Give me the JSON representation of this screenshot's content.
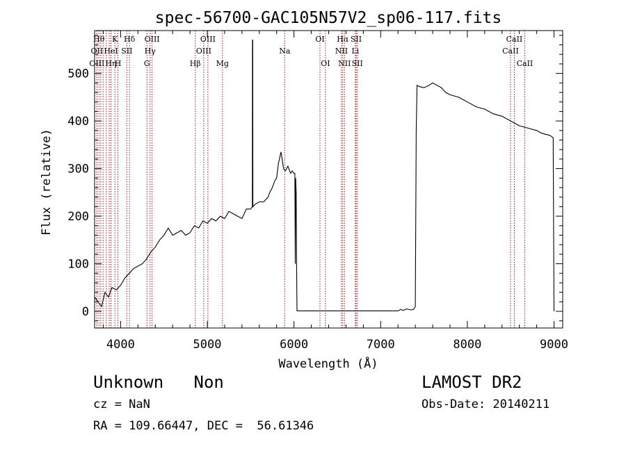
{
  "title": "spec-56700-GAC105N57V2_sp06-117.fits",
  "chart_data": {
    "type": "line",
    "title": "spec-56700-GAC105N57V2_sp06-117.fits",
    "xlabel": "Wavelength (Å)",
    "ylabel": "Flux (relative)",
    "xlim": [
      3700,
      9100
    ],
    "ylim": [
      -35,
      590
    ],
    "xticks": [
      4000,
      5000,
      6000,
      7000,
      8000,
      9000
    ],
    "yticks": [
      0,
      100,
      200,
      300,
      400,
      500
    ],
    "series": [
      {
        "x": [
          3700,
          3740,
          3780,
          3820,
          3860,
          3900,
          3950,
          4000,
          4050,
          4100,
          4150,
          4200,
          4250,
          4300,
          4350,
          4400,
          4450,
          4500,
          4550,
          4600,
          4650,
          4700,
          4750,
          4800,
          4850,
          4900,
          4950,
          5000,
          5050,
          5100,
          5150,
          5200,
          5250,
          5300,
          5350,
          5400,
          5450,
          5500,
          5520,
          5521,
          5525,
          5526,
          5550,
          5600,
          5650,
          5700,
          5720,
          5750,
          5780,
          5800,
          5820,
          5850,
          5880,
          5900,
          5930,
          5960,
          5980,
          6000,
          6010,
          6015,
          6020,
          6025,
          6030,
          6035,
          6040,
          6100,
          6500,
          7000,
          7200,
          7230,
          7260,
          7300,
          7350,
          7380,
          7400,
          7410,
          7420,
          7450,
          7500,
          7550,
          7600,
          7650,
          7700,
          7750,
          7800,
          7900,
          8000,
          8100,
          8200,
          8300,
          8400,
          8500,
          8600,
          8700,
          8800,
          8850,
          8900,
          8950,
          8990,
          9000
        ],
        "values": [
          30,
          20,
          10,
          40,
          30,
          50,
          45,
          55,
          70,
          80,
          90,
          95,
          100,
          110,
          125,
          135,
          150,
          160,
          175,
          160,
          165,
          170,
          160,
          165,
          180,
          175,
          190,
          185,
          195,
          190,
          200,
          195,
          210,
          205,
          200,
          195,
          215,
          215,
          220,
          570,
          570,
          220,
          225,
          230,
          230,
          240,
          250,
          260,
          275,
          280,
          310,
          335,
          300,
          295,
          305,
          290,
          295,
          290,
          290,
          100,
          280,
          250,
          100,
          1,
          1,
          1,
          1,
          1,
          1,
          4,
          2,
          5,
          3,
          4,
          10,
          380,
          475,
          472,
          470,
          474,
          480,
          475,
          470,
          460,
          455,
          450,
          440,
          430,
          425,
          415,
          410,
          400,
          390,
          385,
          380,
          375,
          372,
          370,
          365,
          0
        ]
      }
    ],
    "lines": [
      {
        "x": 3727,
        "label": "OII",
        "row": 1
      },
      {
        "x": 3727,
        "label": "OIII",
        "row": 2
      },
      {
        "x": 3750,
        "label": "Hθ",
        "row": 0
      },
      {
        "x": 3771,
        "label": "",
        "row": -1
      },
      {
        "x": 3798,
        "label": "",
        "row": -1
      },
      {
        "x": 3835,
        "label": "",
        "row": -1
      },
      {
        "x": 3869,
        "label": "",
        "row": -1
      },
      {
        "x": 3889,
        "label": "HeI",
        "row": 1
      },
      {
        "x": 3889,
        "label": "Hη",
        "row": 2
      },
      {
        "x": 3934,
        "label": "K",
        "row": 0
      },
      {
        "x": 3969,
        "label": "H",
        "row": 2
      },
      {
        "x": 4072,
        "label": "SII",
        "row": 1
      },
      {
        "x": 4102,
        "label": "Hδ",
        "row": 0
      },
      {
        "x": 4304,
        "label": "G",
        "row": 2
      },
      {
        "x": 4340,
        "label": "Hγ",
        "row": 1
      },
      {
        "x": 4363,
        "label": "OIII",
        "row": 0
      },
      {
        "x": 4861,
        "label": "Hβ",
        "row": 2
      },
      {
        "x": 4959,
        "label": "OIII",
        "row": 1
      },
      {
        "x": 5007,
        "label": "OIII",
        "row": 0
      },
      {
        "x": 5175,
        "label": "Mg",
        "row": 2
      },
      {
        "x": 5893,
        "label": "Na",
        "row": 1
      },
      {
        "x": 6300,
        "label": "OI",
        "row": 0
      },
      {
        "x": 6363,
        "label": "OI",
        "row": 2
      },
      {
        "x": 6548,
        "label": "NII",
        "row": 1
      },
      {
        "x": 6563,
        "label": "Hα",
        "row": 0
      },
      {
        "x": 6583,
        "label": "NII",
        "row": 2
      },
      {
        "x": 6708,
        "label": "Li",
        "row": 1
      },
      {
        "x": 6717,
        "label": "SII",
        "row": 0
      },
      {
        "x": 6731,
        "label": "SII",
        "row": 2
      },
      {
        "x": 8498,
        "label": "CaII",
        "row": 1
      },
      {
        "x": 8542,
        "label": "CaII",
        "row": 0
      },
      {
        "x": 8662,
        "label": "CaII",
        "row": 2
      }
    ],
    "line_color": "#8b1a1a"
  },
  "info": {
    "object": "Unknown   Non",
    "survey": "LAMOST DR2",
    "cz": "cz = NaN",
    "obs_date": "Obs-Date: 20140211",
    "radec": "RA = 109.66447, DEC =  56.61346"
  }
}
